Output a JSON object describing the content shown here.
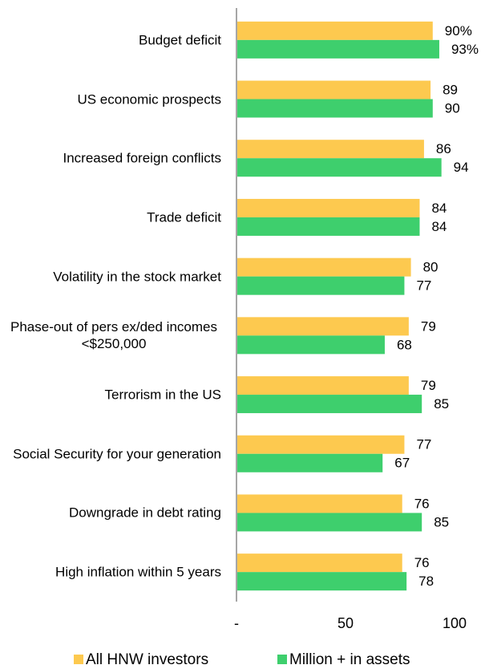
{
  "chart_data": {
    "type": "hbar",
    "categories": [
      "Budget deficit",
      "US economic prospects",
      "Increased foreign conflicts",
      "Trade deficit",
      "Volatility in the stock market",
      "Phase-out of pers ex/ded incomes <$250,000",
      "Terrorism in the US",
      "Social Security for your generation",
      "Downgrade in debt rating",
      "High inflation within 5 years"
    ],
    "series": [
      {
        "name": "All HNW investors",
        "color": "#fdc94f",
        "values": [
          90,
          89,
          86,
          84,
          80,
          79,
          79,
          77,
          76,
          76
        ],
        "value_labels": [
          "90%",
          "89",
          "86",
          "84",
          "80",
          "79",
          "79",
          "77",
          "76",
          "76"
        ]
      },
      {
        "name": "Million + in assets",
        "color": "#3ecf6d",
        "values": [
          93,
          90,
          94,
          84,
          77,
          68,
          85,
          67,
          85,
          78
        ],
        "value_labels": [
          "93%",
          "90",
          "94",
          "84",
          "77",
          "68",
          "85",
          "67",
          "85",
          "78"
        ]
      }
    ],
    "xlim": [
      0,
      100
    ],
    "xticks": [
      {
        "value": 0,
        "label": "-"
      },
      50,
      100
    ]
  }
}
